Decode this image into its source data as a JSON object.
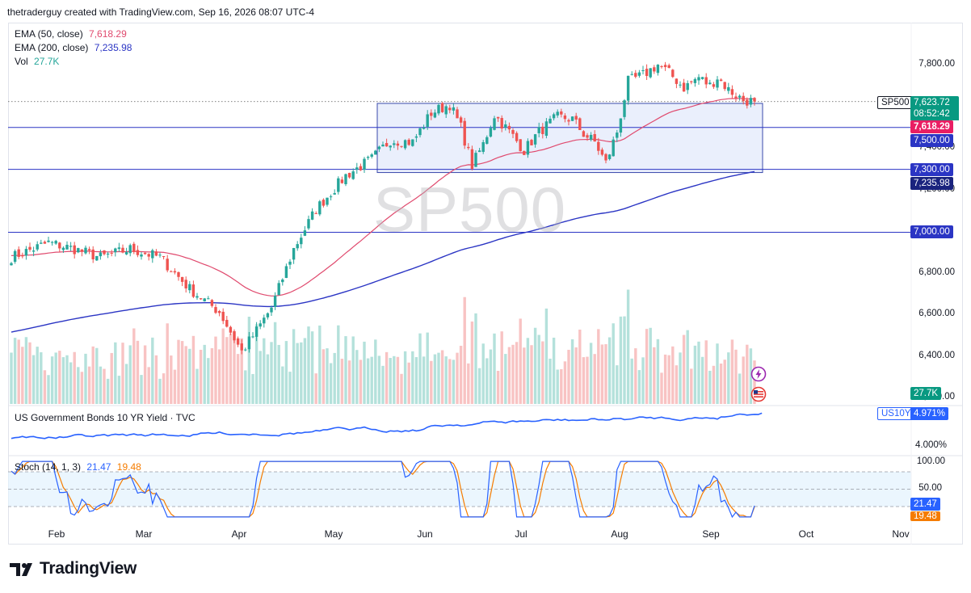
{
  "header": {
    "text": "thetraderguy created with TradingView.com, Sep 16, 2026 08:07 UTC-4"
  },
  "watermark": "SP500",
  "legend": {
    "ema50_label": "EMA (50, close)",
    "ema50_value": "7,618.29",
    "ema200_label": "EMA (200, close)",
    "ema200_value": "7,235.98",
    "vol_label": "Vol",
    "vol_value": "27.7K",
    "bond_label": "US Government Bonds 10 YR Yield · TVC",
    "stoch_label": "Stoch (14, 1, 3)",
    "stoch_k": "21.47",
    "stoch_d": "19.48"
  },
  "price_tags": {
    "symbol": "SP500",
    "last": "7,623.72",
    "countdown": "08:52:42",
    "ema50": "7,618.29",
    "level_7500": "7,500.00",
    "level_7300": "7,300.00",
    "ema200": "7,235.98",
    "level_7000": "7,000.00",
    "vol": "27.7K",
    "bond_symbol": "US10Y",
    "bond_value": "4.971%",
    "stoch_k": "21.47",
    "stoch_d": "19.48"
  },
  "colors": {
    "up": "#26a69a",
    "down": "#ef5350",
    "ema50": "#e04a6e",
    "ema200": "#2b35c4",
    "bond": "#2962ff",
    "stoch_k": "#2962ff",
    "stoch_d": "#f57c00",
    "level": "#2b35c4",
    "box_fill": "#e3e9fb",
    "box_stroke": "#3949ab"
  },
  "chart_data": {
    "type": "candlestick",
    "symbol": "SP500",
    "x_labels": [
      "Feb",
      "Mar",
      "Apr",
      "May",
      "Jun",
      "Jul",
      "Aug",
      "Sep",
      "Oct",
      "Nov"
    ],
    "y_ticks": [
      "7,800.00",
      "7,400.00",
      "7,200.00",
      "6,800.00",
      "6,600.00",
      "6,400.00",
      "6,200.00"
    ],
    "ylim": [
      6200,
      7850
    ],
    "horizontal_levels": [
      7500,
      7300,
      7000
    ],
    "range_box": {
      "low": 7285,
      "high": 7615,
      "start": "May 18",
      "end": "Sep 16"
    },
    "price_keyframes": [
      {
        "i": 0,
        "c": 6880
      },
      {
        "i": 10,
        "c": 6950
      },
      {
        "i": 17,
        "c": 6920
      },
      {
        "i": 24,
        "c": 6880
      },
      {
        "i": 32,
        "c": 6920
      },
      {
        "i": 40,
        "c": 6880
      },
      {
        "i": 48,
        "c": 6730
      },
      {
        "i": 56,
        "c": 6620
      },
      {
        "i": 62,
        "c": 6430
      },
      {
        "i": 66,
        "c": 6530
      },
      {
        "i": 70,
        "c": 6640
      },
      {
        "i": 76,
        "c": 6920
      },
      {
        "i": 82,
        "c": 7110
      },
      {
        "i": 90,
        "c": 7270
      },
      {
        "i": 97,
        "c": 7350
      },
      {
        "i": 102,
        "c": 7440
      },
      {
        "i": 108,
        "c": 7430
      },
      {
        "i": 113,
        "c": 7570
      },
      {
        "i": 118,
        "c": 7610
      },
      {
        "i": 121,
        "c": 7500
      },
      {
        "i": 124,
        "c": 7320
      },
      {
        "i": 127,
        "c": 7420
      },
      {
        "i": 130,
        "c": 7560
      },
      {
        "i": 134,
        "c": 7480
      },
      {
        "i": 138,
        "c": 7390
      },
      {
        "i": 142,
        "c": 7480
      },
      {
        "i": 147,
        "c": 7550
      },
      {
        "i": 151,
        "c": 7540
      },
      {
        "i": 154,
        "c": 7470
      },
      {
        "i": 157,
        "c": 7430
      },
      {
        "i": 160,
        "c": 7330
      },
      {
        "i": 163,
        "c": 7480
      },
      {
        "i": 166,
        "c": 7720
      },
      {
        "i": 170,
        "c": 7750
      },
      {
        "i": 174,
        "c": 7800
      },
      {
        "i": 177,
        "c": 7760
      },
      {
        "i": 181,
        "c": 7690
      },
      {
        "i": 185,
        "c": 7740
      },
      {
        "i": 188,
        "c": 7700
      },
      {
        "i": 190,
        "c": 7740
      },
      {
        "i": 193,
        "c": 7680
      },
      {
        "i": 197,
        "c": 7630
      },
      {
        "i": 200,
        "c": 7624
      }
    ],
    "last_close": 7623.72,
    "ema50_last": 7618.29,
    "ema200_last": 7235.98,
    "volume_last": "27.7K",
    "bond_yield": {
      "last": 4.971,
      "axis_label": "4.000%"
    },
    "stochastic": {
      "k_last": 21.47,
      "d_last": 19.48,
      "levels": [
        20,
        50,
        80
      ],
      "axis_labels": [
        "100.00",
        "50.00"
      ]
    }
  }
}
